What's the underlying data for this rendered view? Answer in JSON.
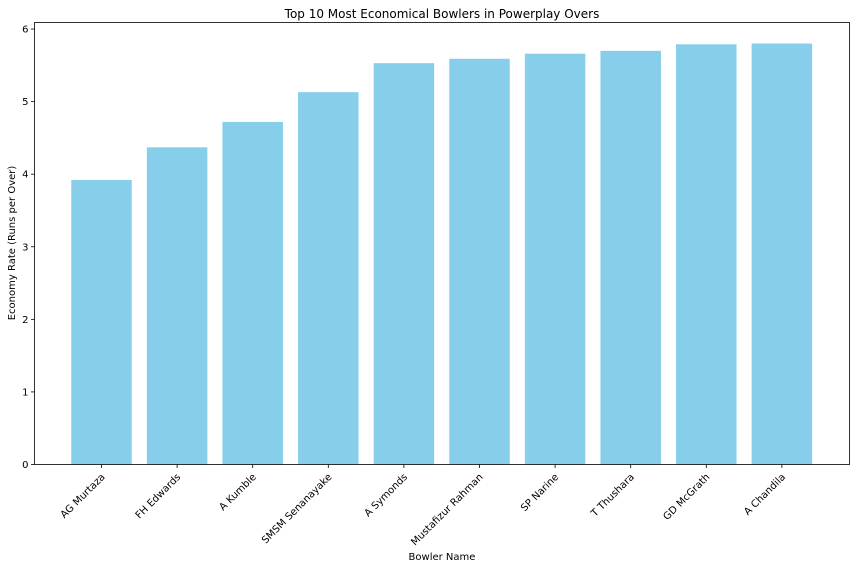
{
  "chart_data": {
    "type": "bar",
    "title": "Top 10 Most Economical Bowlers in Powerplay Overs",
    "xlabel": "Bowler Name",
    "ylabel": "Economy Rate (Runs per Over)",
    "categories": [
      "AG Murtaza",
      "FH Edwards",
      "A Kumble",
      "SMSM Senanayake",
      "A Symonds",
      "Mustafizur Rahman",
      "SP Narine",
      "T Thushara",
      "GD McGrath",
      "A Chandila"
    ],
    "values": [
      3.92,
      4.37,
      4.72,
      5.13,
      5.53,
      5.59,
      5.66,
      5.7,
      5.79,
      5.8
    ],
    "ylim": [
      0,
      6.09
    ],
    "yticks": [
      0,
      1,
      2,
      3,
      4,
      5,
      6
    ],
    "bar_color": "#87ceeb",
    "grid": false,
    "legend": "none"
  }
}
